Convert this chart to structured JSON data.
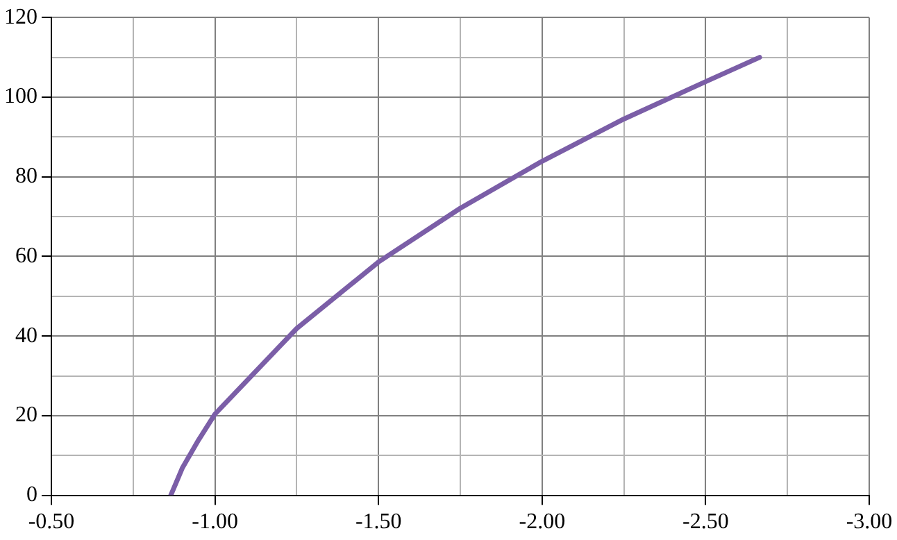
{
  "chart_data": {
    "type": "line",
    "x": [
      -0.865,
      -0.9,
      -0.95,
      -1.0,
      -1.25,
      -1.5,
      -1.75,
      -2.0,
      -2.25,
      -2.5,
      -2.665
    ],
    "series": [
      {
        "color": "#7b5ea7",
        "values": [
          0,
          6.8,
          13.9,
          20.4,
          41.9,
          58.6,
          72.1,
          83.9,
          94.5,
          103.9,
          110.0
        ]
      }
    ],
    "xlim": [
      -0.5,
      -3.0
    ],
    "xticks": [
      {
        "value": -0.5,
        "label": "-0.50"
      },
      {
        "value": -0.75,
        "label": null
      },
      {
        "value": -1.0,
        "label": "-1.00"
      },
      {
        "value": -1.25,
        "label": null
      },
      {
        "value": -1.5,
        "label": "-1.50"
      },
      {
        "value": -1.75,
        "label": null
      },
      {
        "value": -2.0,
        "label": "-2.00"
      },
      {
        "value": -2.25,
        "label": null
      },
      {
        "value": -2.5,
        "label": "-2.50"
      },
      {
        "value": -2.75,
        "label": null
      },
      {
        "value": -3.0,
        "label": "-3.00"
      }
    ],
    "ylim": [
      0,
      120
    ],
    "yticks": [
      0,
      {
        "value": 10,
        "label": null
      },
      20,
      {
        "value": 30,
        "label": null
      },
      40,
      {
        "value": 50,
        "label": null
      },
      60,
      {
        "value": 70,
        "label": null
      },
      80,
      {
        "value": 90,
        "label": null
      },
      100,
      {
        "value": 110,
        "label": null
      },
      120
    ],
    "grid": true,
    "legend": false,
    "marker": "none",
    "line_style": "solid"
  }
}
